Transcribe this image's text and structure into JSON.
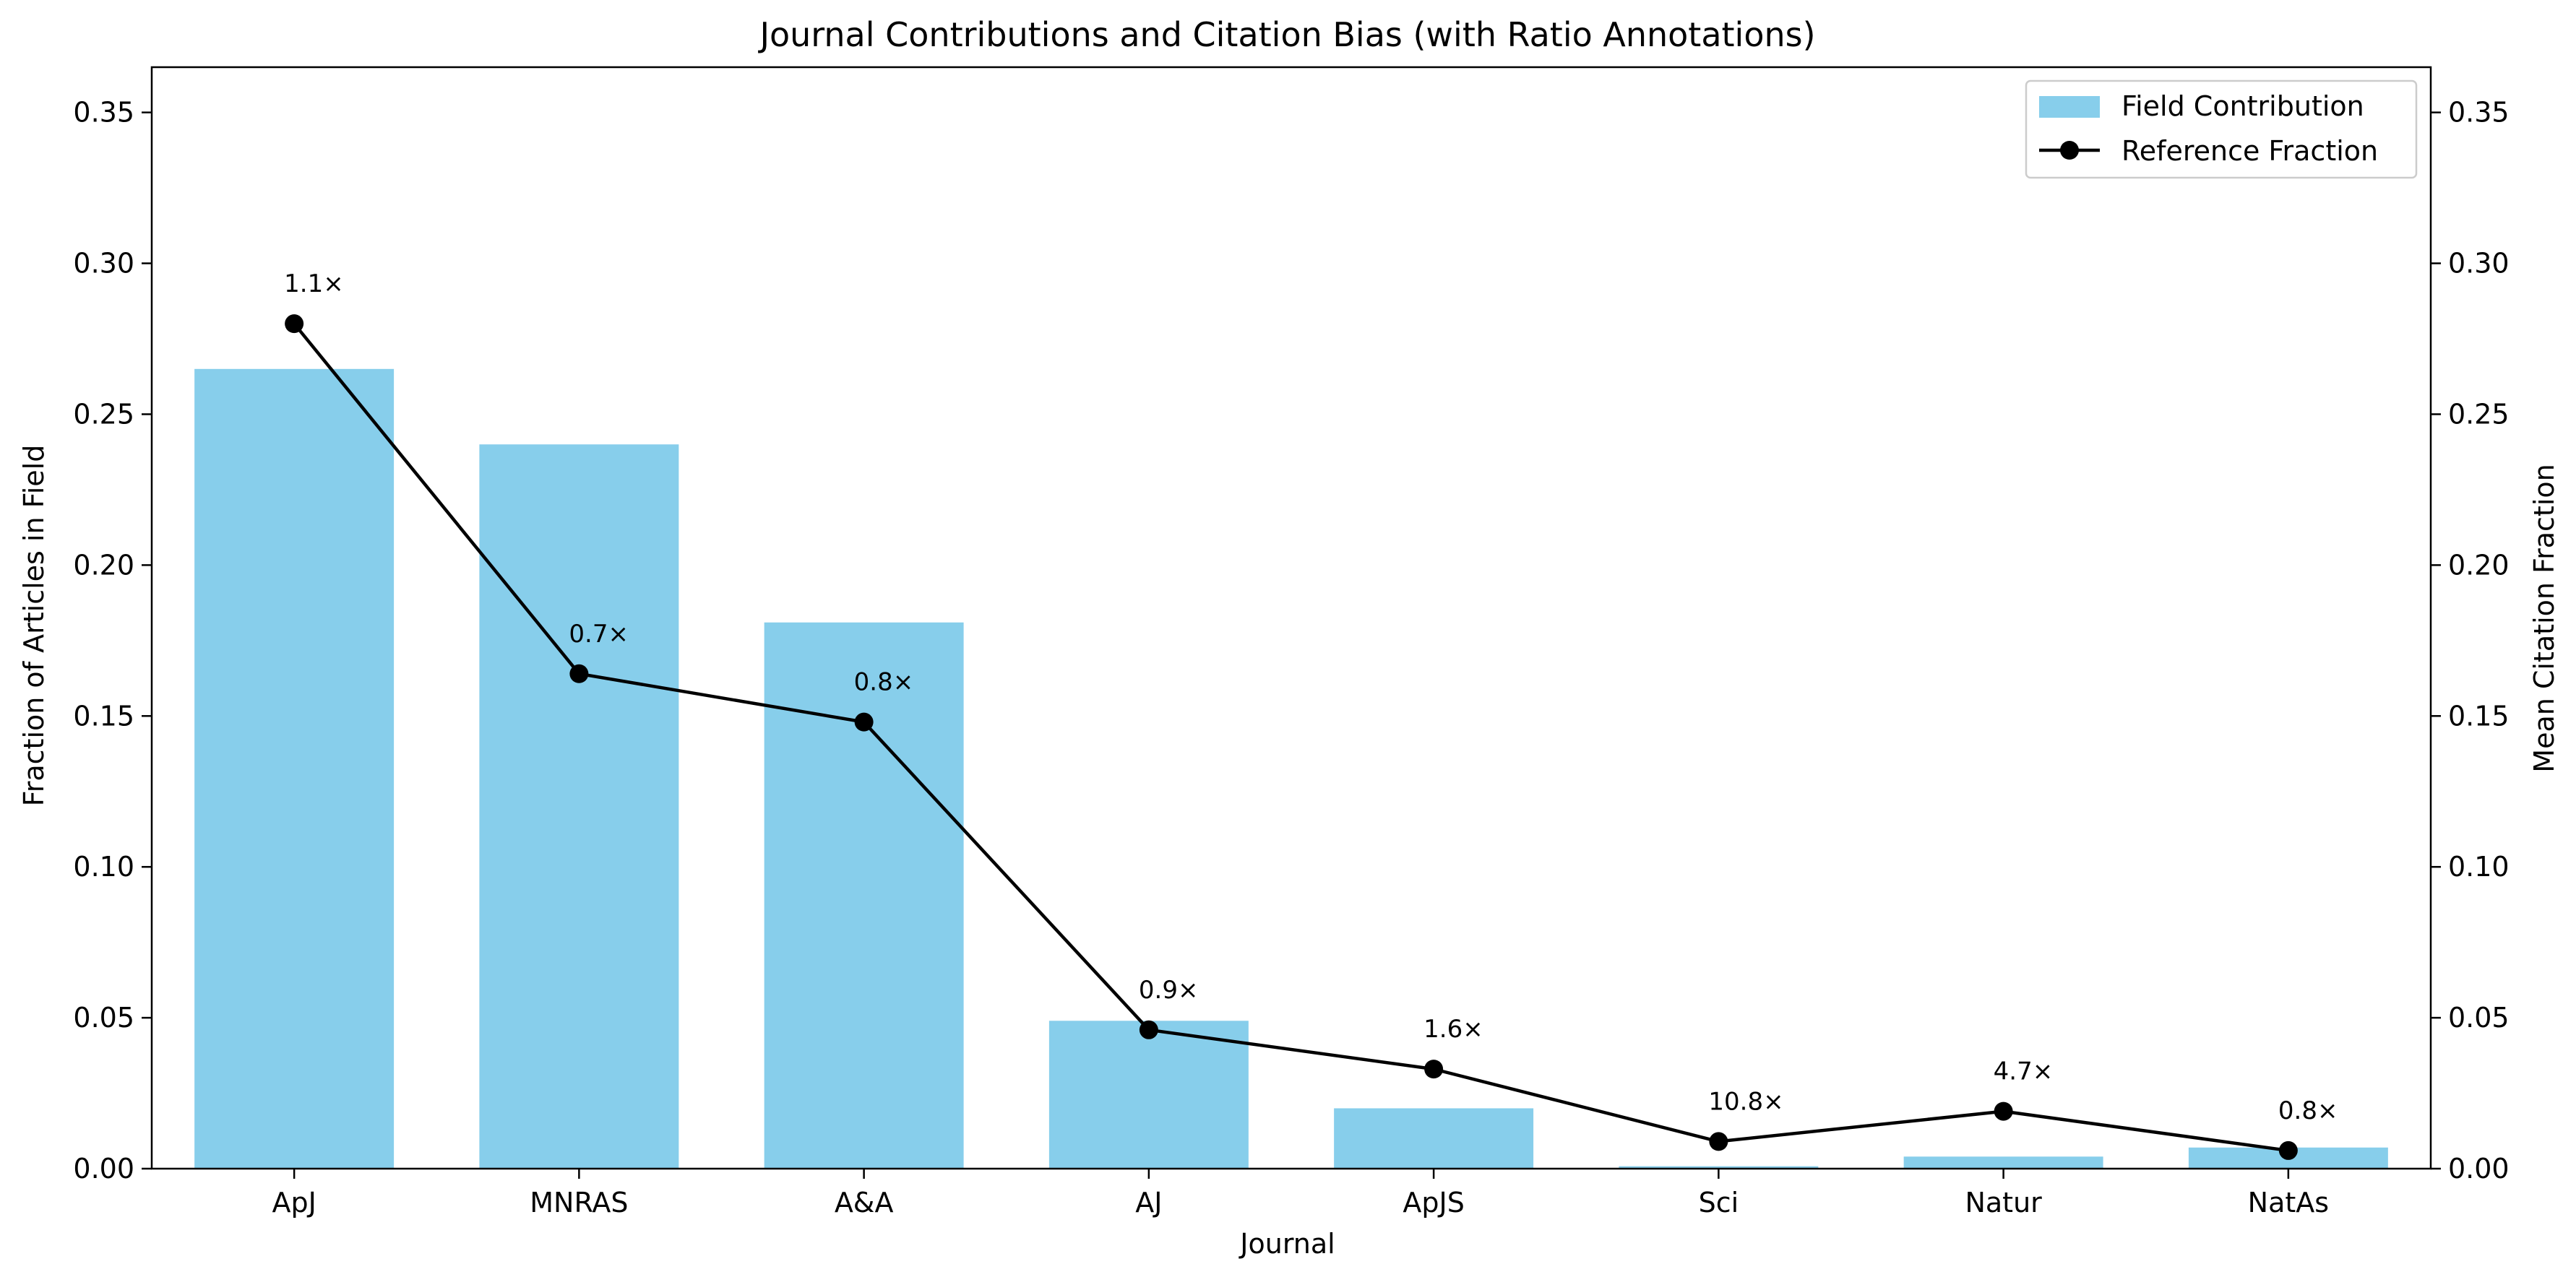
{
  "chart_data": {
    "type": "bar",
    "title": "Journal Contributions and Citation Bias (with Ratio Annotations)",
    "xlabel": "Journal",
    "ylabel": "Fraction of Articles in Field",
    "y2label": "Mean Citation Fraction",
    "categories": [
      "ApJ",
      "MNRAS",
      "A&A",
      "AJ",
      "ApJS",
      "Sci",
      "Natur",
      "NatAs"
    ],
    "ylim": [
      0,
      0.365
    ],
    "y2lim": [
      0,
      0.365
    ],
    "yticks": [
      "0.00",
      "0.05",
      "0.10",
      "0.15",
      "0.20",
      "0.25",
      "0.30",
      "0.35"
    ],
    "y2ticks": [
      "0.00",
      "0.05",
      "0.10",
      "0.15",
      "0.20",
      "0.25",
      "0.30",
      "0.35"
    ],
    "legend_position": "top-right",
    "series": [
      {
        "name": "Field Contribution",
        "type": "bar",
        "axis": "left",
        "color": "#87CEEB",
        "values": [
          0.265,
          0.24,
          0.181,
          0.049,
          0.02,
          0.0008,
          0.004,
          0.007
        ]
      },
      {
        "name": "Reference Fraction",
        "type": "line",
        "axis": "right",
        "color": "#000000",
        "marker": "circle",
        "values": [
          0.28,
          0.164,
          0.148,
          0.046,
          0.033,
          0.009,
          0.019,
          0.006
        ]
      }
    ],
    "annotations": [
      "1.1×",
      "0.7×",
      "0.8×",
      "0.9×",
      "1.6×",
      "10.8×",
      "4.7×",
      "0.8×"
    ]
  }
}
